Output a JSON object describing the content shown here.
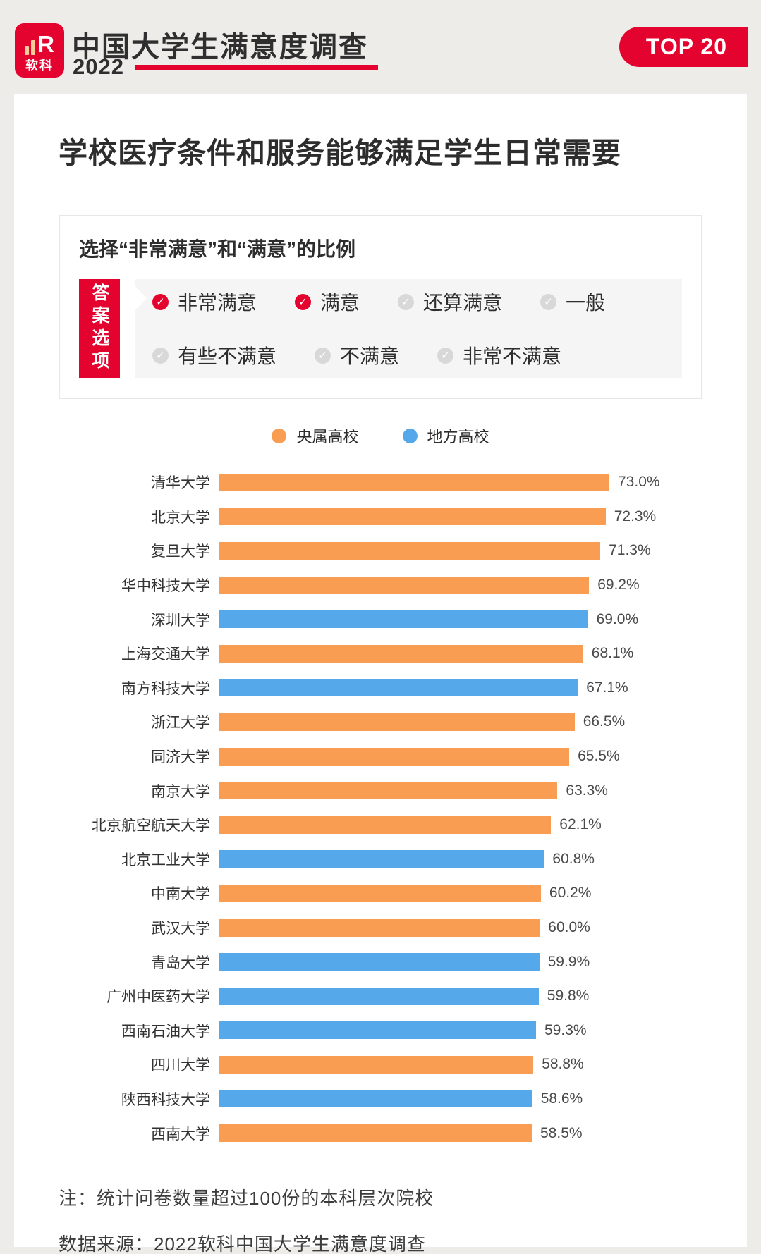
{
  "colors": {
    "brand_red": "#E4032E",
    "central_orange": "#F89D51",
    "local_blue": "#55A9EB",
    "page_background": "#EDECE8",
    "panel_gray": "#F5F5F5",
    "unselected_gray": "#D8D8D8"
  },
  "header": {
    "logo_mark": "R",
    "logo_text": "软科",
    "title": "中国大学生满意度调查",
    "year": "2022",
    "badge": "TOP 20"
  },
  "main": {
    "title": "学校医疗条件和服务能够满足学生日常需要",
    "filter": {
      "heading": "选择“非常满意”和“满意”的比例",
      "tab_label": "答案选项",
      "option_rows": [
        [
          {
            "label": "非常满意",
            "selected": true
          },
          {
            "label": "满意",
            "selected": true
          },
          {
            "label": "还算满意",
            "selected": false
          },
          {
            "label": "一般",
            "selected": false
          }
        ],
        [
          {
            "label": "有些不满意",
            "selected": false
          },
          {
            "label": "不满意",
            "selected": false
          },
          {
            "label": "非常不满意",
            "selected": false
          }
        ]
      ]
    },
    "notes": [
      "注：统计问卷数量超过100份的本科层次院校",
      "数据来源：2022软科中国大学生满意度调查"
    ]
  },
  "chart_data": {
    "type": "bar",
    "orientation": "horizontal",
    "title": "学校医疗条件和服务能够满足学生日常需要",
    "subtitle": "选择“非常满意”和“满意”的比例",
    "unit": "%",
    "value_range": [
      0,
      73
    ],
    "grid": false,
    "legend_position": "top-center",
    "legend": [
      {
        "name": "央属高校",
        "color": "#F89D51"
      },
      {
        "name": "地方高校",
        "color": "#55A9EB"
      }
    ],
    "categories": [
      "清华大学",
      "北京大学",
      "复旦大学",
      "华中科技大学",
      "深圳大学",
      "上海交通大学",
      "南方科技大学",
      "浙江大学",
      "同济大学",
      "南京大学",
      "北京航空航天大学",
      "北京工业大学",
      "中南大学",
      "武汉大学",
      "青岛大学",
      "广州中医药大学",
      "西南石油大学",
      "四川大学",
      "陕西科技大学",
      "西南大学"
    ],
    "values": [
      73.0,
      72.3,
      71.3,
      69.2,
      69.0,
      68.1,
      67.1,
      66.5,
      65.5,
      63.3,
      62.1,
      60.8,
      60.2,
      60.0,
      59.9,
      59.8,
      59.3,
      58.8,
      58.6,
      58.5
    ],
    "groups": [
      "央属高校",
      "央属高校",
      "央属高校",
      "央属高校",
      "地方高校",
      "央属高校",
      "地方高校",
      "央属高校",
      "央属高校",
      "央属高校",
      "央属高校",
      "地方高校",
      "央属高校",
      "央属高校",
      "地方高校",
      "地方高校",
      "地方高校",
      "央属高校",
      "地方高校",
      "央属高校"
    ],
    "value_labels": [
      "73.0%",
      "72.3%",
      "71.3%",
      "69.2%",
      "69.0%",
      "68.1%",
      "67.1%",
      "66.5%",
      "65.5%",
      "63.3%",
      "62.1%",
      "60.8%",
      "60.2%",
      "60.0%",
      "59.9%",
      "59.8%",
      "59.3%",
      "58.8%",
      "58.6%",
      "58.5%"
    ]
  }
}
